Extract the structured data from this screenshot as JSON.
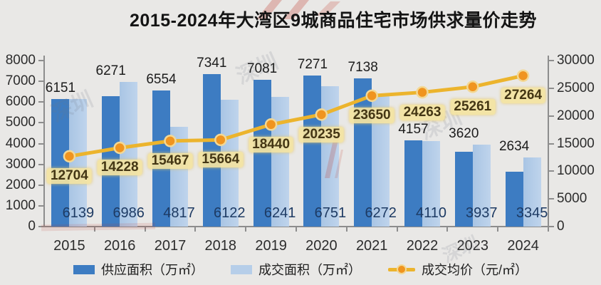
{
  "title": "2015-2024年大湾区9城商品住宅市场供求量价走势",
  "watermark": {
    "text": "深圳"
  },
  "chart_data": {
    "type": "bar",
    "subtype": "combo-bar-line-dual-axis",
    "title": "2015-2024年大湾区9城商品住宅市场供求量价走势",
    "categories": [
      "2015",
      "2016",
      "2017",
      "2018",
      "2019",
      "2020",
      "2021",
      "2022",
      "2023",
      "2024"
    ],
    "series": [
      {
        "name": "供应面积（万㎡）",
        "type": "bar",
        "axis": "left",
        "color": "#3d7cc2",
        "values": [
          6151,
          6271,
          6554,
          7341,
          7081,
          7271,
          7138,
          4157,
          3620,
          2634
        ]
      },
      {
        "name": "成交面积（万㎡）",
        "type": "bar",
        "axis": "left",
        "color": "#b6cee9",
        "values": [
          6139,
          6986,
          4817,
          6122,
          6241,
          6751,
          6272,
          4110,
          3937,
          3345
        ]
      },
      {
        "name": "成交均价（元/㎡）",
        "type": "line",
        "axis": "right",
        "color": "#ecb42d",
        "marker_color": "#f0941f",
        "values": [
          12704,
          14228,
          15467,
          15664,
          18440,
          20235,
          23650,
          24263,
          25261,
          27264
        ]
      }
    ],
    "left_axis": {
      "min": 0,
      "max": 8000,
      "step": 1000
    },
    "right_axis": {
      "min": 0,
      "max": 30000,
      "step": 5000
    },
    "grid": false,
    "legend_position": "bottom",
    "label_styles": {
      "supply_label_color": "#1c1c1c",
      "deal_label_color": "#1d3a63",
      "price_label_bg": "#f3e3a1",
      "price_label_color": "#443614"
    }
  }
}
